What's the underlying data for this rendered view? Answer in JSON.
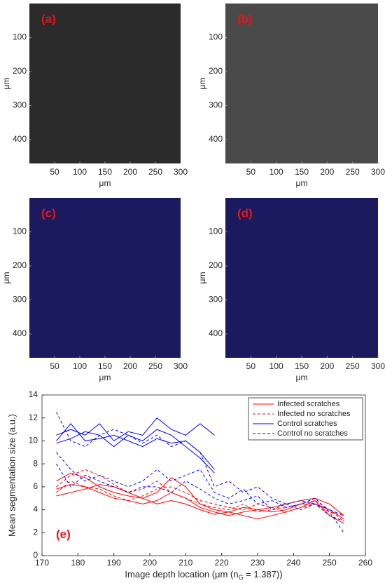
{
  "chart_data": [
    {
      "type": "image",
      "label": "(a)",
      "xlabel": "μm",
      "ylabel": "μm",
      "color": "#2b2b2b",
      "xlim": [
        0,
        300
      ],
      "xticks": [
        50,
        100,
        150,
        200,
        250,
        300
      ],
      "ylim": [
        0,
        470
      ],
      "yticks": [
        100,
        200,
        300,
        400
      ]
    },
    {
      "type": "image",
      "label": "(b)",
      "xlabel": "μm",
      "ylabel": "μm",
      "color": "#4a4a4a",
      "xlim": [
        0,
        300
      ],
      "xticks": [
        50,
        100,
        150,
        200,
        250,
        300
      ],
      "ylim": [
        0,
        470
      ],
      "yticks": [
        100,
        200,
        300,
        400
      ]
    },
    {
      "type": "image",
      "label": "(c)",
      "xlabel": "μm",
      "ylabel": "μm",
      "color": "#1c1a5e",
      "xlim": [
        0,
        300
      ],
      "xticks": [
        50,
        100,
        150,
        200,
        250,
        300
      ],
      "ylim": [
        0,
        470
      ],
      "yticks": [
        100,
        200,
        300,
        400
      ]
    },
    {
      "type": "image",
      "label": "(d)",
      "xlabel": "μm",
      "ylabel": "μm",
      "color": "#1c1a5e",
      "xlim": [
        0,
        300
      ],
      "xticks": [
        50,
        100,
        150,
        200,
        250,
        300
      ],
      "ylim": [
        0,
        470
      ],
      "yticks": [
        100,
        200,
        300,
        400
      ]
    },
    {
      "type": "line",
      "label": "(e)",
      "ylabel": "Mean segmentation size (a.u.)",
      "xlabel": "Image depth location (μm (n",
      "xlabel_sub": "G",
      "xlabel_end": " = 1.387))",
      "xlim": [
        170,
        260
      ],
      "xticks": [
        170,
        180,
        190,
        200,
        210,
        220,
        230,
        240,
        250,
        260
      ],
      "ylim": [
        0,
        14
      ],
      "yticks": [
        0,
        2,
        4,
        6,
        8,
        10,
        12,
        14
      ],
      "legend": "upper right",
      "series": [
        {
          "name": "Infected scratches",
          "color": "#ff0000",
          "dashed": false,
          "x": [
            174,
            178,
            182,
            186,
            190,
            194,
            198,
            202,
            206,
            210,
            214,
            218,
            222,
            226,
            230,
            234,
            238,
            242,
            246,
            250,
            254
          ],
          "lines": [
            [
              6.5,
              7.2,
              6.8,
              6.0,
              5.5,
              5.2,
              5.0,
              5.5,
              6.8,
              6.0,
              4.5,
              4.0,
              3.8,
              3.5,
              3.2,
              3.5,
              3.8,
              4.2,
              4.8,
              3.5,
              2.8
            ],
            [
              5.8,
              6.2,
              6.0,
              5.5,
              5.0,
              4.8,
              4.5,
              4.8,
              5.5,
              5.0,
              4.2,
              3.8,
              3.5,
              3.8,
              4.0,
              3.8,
              4.0,
              4.5,
              4.5,
              4.0,
              3.2
            ],
            [
              5.2,
              5.5,
              5.8,
              6.2,
              6.0,
              5.5,
              5.0,
              4.5,
              4.8,
              4.5,
              4.0,
              3.6,
              3.8,
              4.2,
              4.0,
              4.2,
              4.5,
              4.8,
              5.0,
              4.5,
              3.5
            ]
          ]
        },
        {
          "name": "Infected no scratches",
          "color": "#ff0000",
          "dashed": true,
          "x": [
            174,
            178,
            182,
            186,
            190,
            194,
            198,
            202,
            206,
            210,
            214,
            218,
            222,
            226,
            230,
            234,
            238,
            242,
            246,
            250,
            254
          ],
          "lines": [
            [
              6.0,
              7.0,
              7.5,
              7.0,
              6.2,
              5.5,
              5.8,
              6.5,
              5.5,
              5.0,
              4.5,
              4.2,
              4.0,
              4.5,
              3.8,
              4.0,
              4.2,
              4.5,
              4.8,
              4.0,
              3.0
            ],
            [
              5.5,
              6.5,
              6.0,
              5.8,
              5.2,
              4.8,
              5.2,
              5.8,
              6.0,
              5.5,
              4.8,
              4.5,
              4.2,
              4.0,
              4.5,
              4.2,
              3.8,
              4.2,
              4.5,
              3.8,
              3.5
            ]
          ]
        },
        {
          "name": "Control scratches",
          "color": "#0000ff",
          "dashed": false,
          "x": [
            174,
            178,
            182,
            186,
            190,
            194,
            198,
            202,
            206,
            210,
            214,
            218
          ],
          "lines": [
            [
              10.5,
              11.0,
              10.5,
              11.5,
              10.0,
              10.8,
              10.5,
              12.0,
              11.0,
              10.5,
              11.5,
              10.5
            ],
            [
              9.8,
              10.2,
              10.8,
              10.5,
              9.5,
              10.5,
              10.0,
              11.0,
              10.5,
              9.5,
              8.5,
              7.2
            ],
            [
              10.0,
              11.5,
              10.0,
              10.2,
              10.5,
              10.0,
              9.5,
              10.2,
              9.8,
              10.0,
              9.0,
              7.5
            ]
          ]
        },
        {
          "name": "Control no scratches",
          "color": "#0000ff",
          "dashed": true,
          "x": [
            174,
            178,
            182,
            186,
            190,
            194,
            198,
            202,
            206,
            210,
            214,
            218,
            222,
            226,
            230,
            234,
            238,
            242,
            246,
            250,
            254
          ],
          "lines": [
            [
              12.5,
              10.0,
              9.5,
              10.5,
              11.0,
              10.5,
              9.8,
              10.5,
              9.5,
              10.0,
              9.0,
              6.0,
              6.5,
              5.5,
              6.0,
              5.0,
              4.5,
              4.8,
              4.5,
              4.0,
              3.5
            ],
            [
              9.0,
              7.5,
              6.5,
              7.0,
              6.5,
              6.0,
              6.5,
              7.5,
              6.5,
              7.0,
              7.5,
              5.5,
              5.0,
              5.8,
              4.5,
              4.8,
              4.2,
              4.5,
              5.0,
              3.8,
              2.0
            ],
            [
              8.0,
              6.0,
              7.0,
              6.5,
              6.0,
              5.5,
              6.0,
              6.0,
              5.5,
              6.5,
              5.8,
              5.0,
              4.5,
              4.8,
              5.2,
              4.0,
              4.5,
              4.0,
              4.5,
              3.5,
              3.0
            ]
          ]
        }
      ]
    }
  ]
}
